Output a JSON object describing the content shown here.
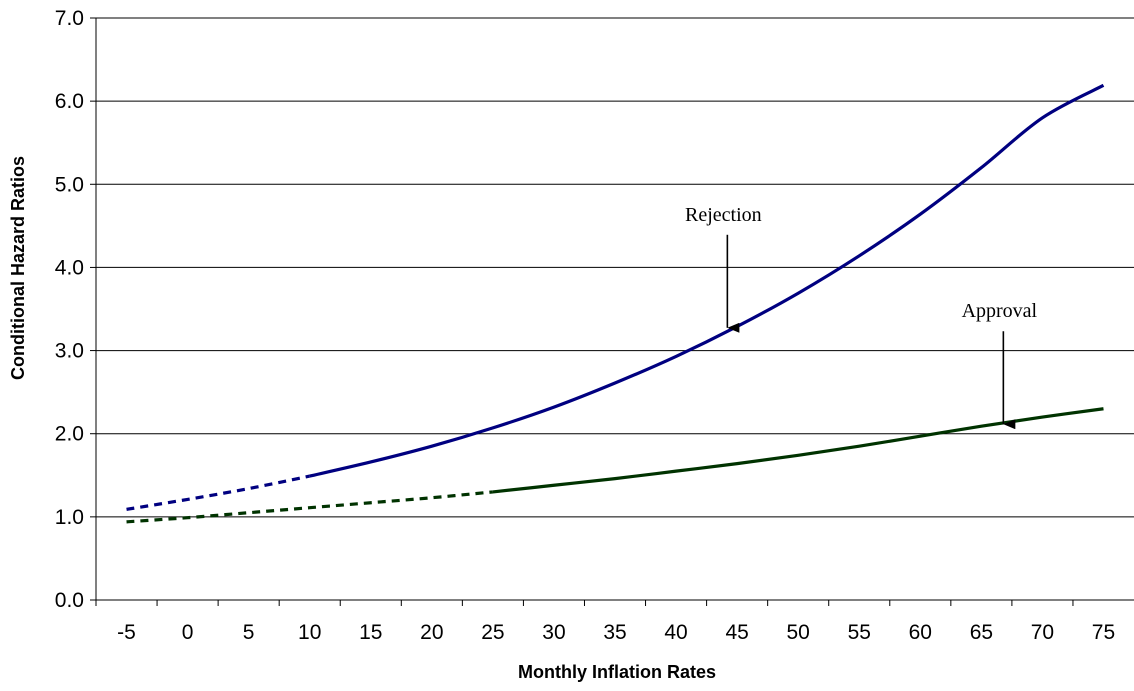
{
  "chart_data": {
    "type": "line",
    "title": "",
    "xlabel": "Monthly Inflation Rates",
    "ylabel": "Conditional Hazard Ratios",
    "x_ticks": [
      "-5",
      "0",
      "5",
      "10",
      "15",
      "20",
      "25",
      "30",
      "35",
      "40",
      "45",
      "50",
      "55",
      "60",
      "65",
      "70",
      "75"
    ],
    "y_ticks": [
      "0.0",
      "1.0",
      "2.0",
      "3.0",
      "4.0",
      "5.0",
      "6.0",
      "7.0"
    ],
    "xlim": [
      -5,
      75
    ],
    "ylim": [
      0,
      7
    ],
    "grid": "horizontal",
    "legend": "none",
    "series": [
      {
        "name": "Rejection",
        "color": "#000080",
        "dashed_until_x": 10,
        "x": [
          -5,
          0,
          5,
          10,
          15,
          20,
          25,
          30,
          35,
          40,
          45,
          50,
          55,
          60,
          65,
          70,
          75
        ],
        "y": [
          1.09,
          1.21,
          1.34,
          1.49,
          1.66,
          1.85,
          2.07,
          2.32,
          2.61,
          2.93,
          3.29,
          3.69,
          4.14,
          4.64,
          5.2,
          5.8,
          6.19
        ]
      },
      {
        "name": "Approval",
        "color": "#003300",
        "dashed_until_x": 25,
        "x": [
          -5,
          0,
          5,
          10,
          15,
          20,
          25,
          30,
          35,
          40,
          45,
          50,
          55,
          60,
          65,
          70,
          75
        ],
        "y": [
          0.94,
          0.99,
          1.05,
          1.11,
          1.17,
          1.23,
          1.3,
          1.38,
          1.46,
          1.55,
          1.64,
          1.74,
          1.85,
          1.97,
          2.09,
          2.2,
          2.3
        ]
      }
    ],
    "annotations": [
      {
        "text": "Rejection",
        "arrow_to_x": 44.2,
        "arrow_to_y": 3.25
      },
      {
        "text": "Approval",
        "arrow_to_x": 66.8,
        "arrow_to_y": 2.09
      }
    ]
  }
}
